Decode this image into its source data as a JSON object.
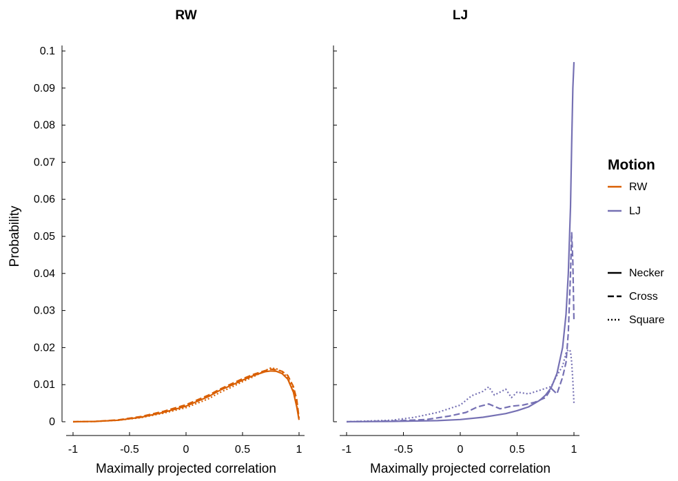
{
  "chart_data": {
    "type": "line",
    "ylabel": "Probability",
    "ylim": [
      0,
      0.1
    ],
    "y_ticks": [
      0,
      0.01,
      0.02,
      0.03,
      0.04,
      0.05,
      0.06,
      0.07,
      0.08,
      0.09,
      0.1
    ],
    "y_tick_labels": [
      "0",
      "0.01",
      "0.02",
      "0.03",
      "0.04",
      "0.05",
      "0.06",
      "0.07",
      "0.08",
      "0.09",
      "0.1"
    ],
    "xlim": [
      -1,
      1
    ],
    "x_ticks": [
      -1,
      -0.5,
      0,
      0.5,
      1
    ],
    "x_tick_labels": [
      "-1",
      "-0.5",
      "0",
      "0.5",
      "1"
    ],
    "grid": false,
    "legend_position": "right",
    "legend": {
      "title": "Motion",
      "color_entries": [
        {
          "label": "RW",
          "color": "#d95f02"
        },
        {
          "label": "LJ",
          "color": "#7570b3"
        }
      ],
      "style_entries": [
        {
          "label": "Necker",
          "dash": "solid"
        },
        {
          "label": "Cross",
          "dash": "dashed"
        },
        {
          "label": "Square",
          "dash": "dotted"
        }
      ]
    },
    "panels": [
      {
        "title": "RW",
        "xlabel": "Maximally projected correlation",
        "color": "#d95f02",
        "series": [
          {
            "name": "Necker",
            "dash": "solid",
            "x": [
              -1,
              -0.8,
              -0.6,
              -0.4,
              -0.2,
              0,
              0.2,
              0.3,
              0.4,
              0.5,
              0.6,
              0.7,
              0.75,
              0.8,
              0.85,
              0.9,
              0.95,
              0.98,
              1.0
            ],
            "y": [
              0,
              0.0001,
              0.0004,
              0.0012,
              0.0025,
              0.0042,
              0.0068,
              0.0085,
              0.0098,
              0.0112,
              0.0125,
              0.0135,
              0.0137,
              0.0136,
              0.013,
              0.0115,
              0.008,
              0.004,
              0.0005
            ]
          },
          {
            "name": "Cross",
            "dash": "dashed",
            "x": [
              -1,
              -0.8,
              -0.6,
              -0.4,
              -0.2,
              0,
              0.2,
              0.3,
              0.4,
              0.5,
              0.6,
              0.7,
              0.75,
              0.8,
              0.85,
              0.9,
              0.95,
              0.98,
              1.0
            ],
            "y": [
              0,
              0.0001,
              0.0005,
              0.0014,
              0.0028,
              0.0046,
              0.0072,
              0.0088,
              0.0102,
              0.0116,
              0.0128,
              0.0138,
              0.0142,
              0.014,
              0.0136,
              0.0125,
              0.0095,
              0.006,
              0.001
            ]
          },
          {
            "name": "Square",
            "dash": "dotted",
            "x": [
              -1,
              -0.8,
              -0.6,
              -0.4,
              -0.2,
              0,
              0.2,
              0.3,
              0.4,
              0.5,
              0.6,
              0.7,
              0.75,
              0.8,
              0.85,
              0.9,
              0.95,
              0.98,
              1.0
            ],
            "y": [
              0,
              0.0001,
              0.0004,
              0.0011,
              0.0023,
              0.0038,
              0.0062,
              0.0079,
              0.0093,
              0.0108,
              0.0122,
              0.0138,
              0.0145,
              0.0143,
              0.0135,
              0.0118,
              0.0085,
              0.0045,
              0.0008
            ]
          }
        ]
      },
      {
        "title": "LJ",
        "xlabel": "Maximally projected correlation",
        "color": "#7570b3",
        "series": [
          {
            "name": "Necker",
            "dash": "solid",
            "x": [
              -1,
              -0.6,
              -0.2,
              0,
              0.2,
              0.4,
              0.5,
              0.6,
              0.7,
              0.75,
              0.8,
              0.85,
              0.9,
              0.93,
              0.95,
              0.97,
              0.98,
              0.99,
              1.0
            ],
            "y": [
              0,
              0.0001,
              0.0003,
              0.0006,
              0.0012,
              0.0022,
              0.003,
              0.004,
              0.0058,
              0.0072,
              0.0092,
              0.013,
              0.02,
              0.029,
              0.04,
              0.058,
              0.075,
              0.09,
              0.097
            ]
          },
          {
            "name": "Cross",
            "dash": "dashed",
            "x": [
              -1,
              -0.6,
              -0.3,
              -0.1,
              0.05,
              0.15,
              0.25,
              0.35,
              0.45,
              0.55,
              0.65,
              0.75,
              0.8,
              0.85,
              0.9,
              0.93,
              0.95,
              0.97,
              0.98,
              0.99,
              1.0
            ],
            "y": [
              0,
              0.0002,
              0.0006,
              0.0015,
              0.0025,
              0.004,
              0.0048,
              0.0035,
              0.0042,
              0.0045,
              0.0052,
              0.0065,
              0.009,
              0.0075,
              0.012,
              0.016,
              0.024,
              0.04,
              0.051,
              0.043,
              0.027
            ]
          },
          {
            "name": "Square",
            "dash": "dotted",
            "x": [
              -1,
              -0.6,
              -0.4,
              -0.2,
              0,
              0.1,
              0.2,
              0.25,
              0.3,
              0.4,
              0.45,
              0.5,
              0.6,
              0.7,
              0.8,
              0.85,
              0.9,
              0.93,
              0.95,
              0.97,
              0.98,
              0.99,
              1.0
            ],
            "y": [
              0,
              0.0004,
              0.0012,
              0.0025,
              0.0045,
              0.007,
              0.0082,
              0.0094,
              0.0072,
              0.0088,
              0.0065,
              0.008,
              0.0075,
              0.0085,
              0.0095,
              0.0125,
              0.015,
              0.0185,
              0.0195,
              0.019,
              0.016,
              0.011,
              0.005
            ]
          }
        ]
      }
    ]
  }
}
